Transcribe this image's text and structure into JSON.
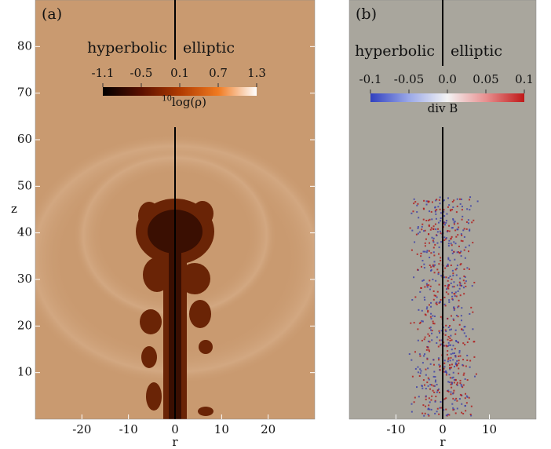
{
  "chart_data": [
    {
      "type": "field",
      "panel_label": "(a)",
      "left_text": "hyperbolic",
      "right_text": "elliptic",
      "xlabel": "r",
      "ylabel": "z",
      "xlim": [
        -30,
        30
      ],
      "xticks": [
        -20,
        -10,
        0,
        10,
        20
      ],
      "ylim": [
        0,
        90
      ],
      "yticks": [
        10,
        20,
        30,
        40,
        50,
        60,
        70,
        80
      ],
      "colorbar": {
        "lim": [
          -1.1,
          1.3
        ],
        "ticks": [
          -1.1,
          -0.5,
          0.1,
          0.7,
          1.3
        ],
        "label_superscript": "10",
        "label": "log(ρ)",
        "colors": [
          "#000000",
          "#5a1000",
          "#b03a00",
          "#f07a20",
          "#ffffff"
        ]
      }
    },
    {
      "type": "field",
      "panel_label": "(b)",
      "left_text": "hyperbolic",
      "right_text": "elliptic",
      "xlabel": "r",
      "xlim": [
        -20,
        20
      ],
      "xticks": [
        -10,
        0,
        10
      ],
      "ylim": [
        0,
        90
      ],
      "colorbar": {
        "lim": [
          -0.1,
          0.1
        ],
        "ticks": [
          -0.1,
          -0.05,
          {
            "value": 0,
            "label": "0.0"
          },
          0.05,
          0.1
        ],
        "label": "div B",
        "colors": [
          "#3040c0",
          "#9aa8e8",
          "#f4f4f4",
          "#e89090",
          "#c01818"
        ]
      }
    }
  ]
}
